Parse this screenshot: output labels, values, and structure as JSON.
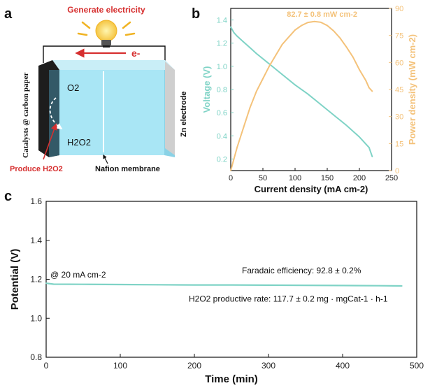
{
  "panels": {
    "a": {
      "letter": "a",
      "generate_label": "Generate electricity",
      "electron_label": "e-",
      "o2_label": "O2",
      "h2o2_label": "H2O2",
      "catalyst_label": "Catalysts @ carbon paper",
      "zn_label": "Zn electrode",
      "produce_label": "Produce H2O2",
      "membrane_label": "Nafion membrane",
      "colors": {
        "electrolyte": "#a9e6f5",
        "accent_red": "#d62f2f",
        "bulb": "#f5c542"
      }
    },
    "b": {
      "letter": "b"
    },
    "c": {
      "letter": "c"
    }
  },
  "chart_data": [
    {
      "type": "line",
      "panel": "b",
      "xlabel": "Current density (mA cm-2)",
      "ylabel": "Voltage (V)",
      "y2label": "Power density (mW cm-2)",
      "annotation": "82.7 ± 0.8 mW cm-2",
      "xlim": [
        0,
        250
      ],
      "ylim": [
        0.1,
        1.5
      ],
      "y2lim": [
        0,
        90
      ],
      "x_ticks": [
        0,
        50,
        100,
        150,
        200,
        250
      ],
      "y_ticks": [
        0.2,
        0.4,
        0.6,
        0.8,
        1.0,
        1.2,
        1.4
      ],
      "y2_ticks": [
        0,
        15,
        30,
        45,
        60,
        75,
        90
      ],
      "grid": false,
      "series": [
        {
          "name": "Voltage (V)",
          "axis": "left",
          "color": "#7fd3c6",
          "x": [
            0,
            5,
            10,
            20,
            30,
            40,
            60,
            80,
            100,
            120,
            140,
            160,
            180,
            200,
            215,
            220
          ],
          "y": [
            1.34,
            1.29,
            1.26,
            1.21,
            1.16,
            1.11,
            1.02,
            0.93,
            0.84,
            0.76,
            0.67,
            0.58,
            0.49,
            0.39,
            0.3,
            0.22
          ]
        },
        {
          "name": "Power density (mW cm-2)",
          "axis": "right",
          "color": "#f4c27a",
          "x": [
            0,
            10,
            20,
            30,
            40,
            50,
            60,
            70,
            80,
            90,
            100,
            110,
            120,
            130,
            140,
            150,
            160,
            170,
            180,
            190,
            200,
            210,
            215,
            220
          ],
          "y": [
            0,
            13,
            24,
            35,
            44,
            51,
            58,
            64,
            70,
            74,
            78,
            80.5,
            82.2,
            82.7,
            82.3,
            80.5,
            77.5,
            73.5,
            68.5,
            63,
            56,
            50,
            46,
            44
          ]
        }
      ]
    },
    {
      "type": "line",
      "panel": "c",
      "xlabel": "Time (min)",
      "ylabel": "Potential (V)",
      "xlim": [
        0,
        500
      ],
      "ylim": [
        0.8,
        1.6
      ],
      "x_ticks": [
        0,
        100,
        200,
        300,
        400,
        500
      ],
      "y_ticks": [
        0.8,
        1.0,
        1.2,
        1.4,
        1.6
      ],
      "grid": false,
      "annotations": {
        "current": "@ 20 mA cm-2",
        "faradaic": "Faradaic efficiency: 92.8 ± 0.2%",
        "rate": "H2O2 productive rate: 117.7 ± 0.2 mg · mgCat-1 · h-1"
      },
      "series": [
        {
          "color": "#7fd3c6",
          "x": [
            0,
            10,
            50,
            100,
            150,
            200,
            250,
            300,
            350,
            400,
            450,
            480
          ],
          "y": [
            1.18,
            1.175,
            1.174,
            1.173,
            1.172,
            1.171,
            1.171,
            1.17,
            1.169,
            1.168,
            1.167,
            1.166
          ]
        }
      ]
    }
  ]
}
